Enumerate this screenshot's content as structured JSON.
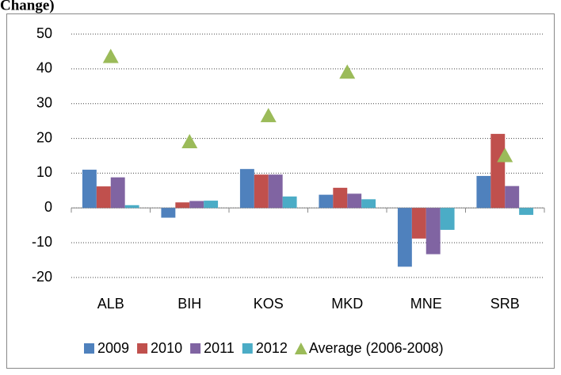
{
  "chart_data": {
    "type": "bar",
    "title": "Change)",
    "categories": [
      "ALB",
      "BIH",
      "KOS",
      "MKD",
      "MNE",
      "SRB"
    ],
    "series": [
      {
        "name": "2009",
        "color": "#4f81bd",
        "values": [
          11,
          -2.8,
          11.2,
          3.8,
          -16.9,
          9.2
        ]
      },
      {
        "name": "2010",
        "color": "#c0504d",
        "values": [
          6.2,
          1.6,
          9.6,
          5.8,
          -8.8,
          21.3
        ]
      },
      {
        "name": "2011",
        "color": "#8064a2",
        "values": [
          8.8,
          2.0,
          9.6,
          4.1,
          -13.3,
          6.3
        ]
      },
      {
        "name": "2012",
        "color": "#4bacc6",
        "values": [
          0.8,
          2.1,
          3.3,
          2.5,
          -6.3,
          -2.0
        ]
      },
      {
        "name": "Average (2006-2008)",
        "color": "#9bbb59",
        "type": "triangle",
        "values": [
          43.5,
          19,
          26.5,
          39,
          null,
          15
        ]
      }
    ],
    "ylim": [
      -20,
      50
    ],
    "yticks": [
      -20,
      -10,
      0,
      10,
      20,
      30,
      40,
      50
    ],
    "grid": true,
    "legend": "bottom"
  }
}
